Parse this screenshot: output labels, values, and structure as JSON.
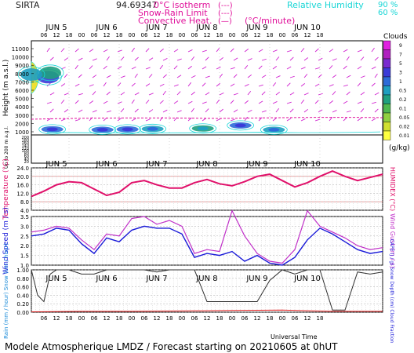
{
  "header": {
    "station": "SIRTA",
    "coords": "94.69347",
    "legend_lines": [
      {
        "label": "0°C isotherm",
        "sym": "(---)",
        "color": "#e0109a"
      },
      {
        "label": "Snow-Rain Limit",
        "sym": "(---)",
        "color": "#e0109a"
      },
      {
        "label": "Convective Heat.",
        "sym": "(—)",
        "color": "#e0109a"
      }
    ],
    "convective_unit": "(°C/minute)",
    "rh_label": "Relative Humidity",
    "rh_levels": [
      "90 %",
      "60 %"
    ],
    "rh_color": "#19d6d6"
  },
  "footer": {
    "title": "Modele Atmospherique LMDZ / Forecast starting on 20210605 at 0hUT",
    "universal_time": "Universal Time"
  },
  "time_axis": {
    "hour_ticks": [
      "06",
      "12",
      "18",
      "00",
      "06",
      "12",
      "18",
      "00",
      "06",
      "12",
      "18",
      "00",
      "06",
      "12",
      "18",
      "00",
      "06",
      "12",
      "18",
      "00",
      "06",
      "12",
      "18"
    ],
    "days": [
      "JUN 5",
      "JUN 6",
      "JUN 7",
      "JUN 8",
      "JUN 9",
      "JUN 10"
    ]
  },
  "chart_data": [
    {
      "type": "heatmap",
      "name": "clouds",
      "ylabel": "Height (m a.s.l.)",
      "ylabel_lower": "Up to 200 m a.g.l.",
      "yticks_upper": [
        "11000",
        "10000",
        "9000",
        "8000",
        "7000",
        "6000",
        "5000",
        "4000",
        "3000",
        "2000",
        "1000"
      ],
      "yticks_lower": [
        "200",
        "180",
        "160",
        "140",
        "120",
        "100",
        "80",
        "60",
        "40",
        "20"
      ],
      "colorbar": {
        "title": "Clouds",
        "unit": "(g/kg)",
        "levels": [
          "9",
          "7",
          "5",
          "3",
          "1",
          "0.5",
          "0.2",
          "0.1",
          "0.05",
          "0.02",
          "0.01"
        ],
        "colors": [
          "#e020e0",
          "#b020c0",
          "#7a2bd0",
          "#3b3bd8",
          "#2d6bd8",
          "#1f9fc0",
          "#20a080",
          "#50b850",
          "#90d040",
          "#d0e030",
          "#ffff40"
        ]
      },
      "cloud_blobs": [
        {
          "t": 8,
          "z": 7700,
          "value": 3
        },
        {
          "t": 9,
          "z": 8200,
          "value": 0.2
        },
        {
          "t": 0,
          "z": 8000,
          "value": 0.5
        },
        {
          "t": 10,
          "z": 1650,
          "value": 1
        },
        {
          "t": 34,
          "z": 1600,
          "value": 1
        },
        {
          "t": 46,
          "z": 1650,
          "value": 1
        },
        {
          "t": 58,
          "z": 1700,
          "value": 0.5
        },
        {
          "t": 82,
          "z": 1750,
          "value": 0.2
        },
        {
          "t": 100,
          "z": 2100,
          "value": 1
        },
        {
          "t": 116,
          "z": 1600,
          "value": 0.5
        }
      ]
    },
    {
      "type": "line",
      "name": "temperature",
      "ylabel": "Temperature (°C)",
      "ylabel_right": "HUMIDEX (°C)",
      "yticks": [
        "24.0",
        "20.0",
        "16.0",
        "12.0",
        "8.0",
        "4.0"
      ],
      "ylim": [
        4,
        24
      ],
      "series": [
        {
          "color": "#e0106a",
          "x": [
            0,
            6,
            12,
            18,
            24,
            30,
            36,
            42,
            48,
            54,
            60,
            66,
            72,
            78,
            84,
            90,
            96,
            102,
            108,
            114,
            120,
            126,
            132,
            138,
            144,
            150,
            156,
            162,
            168
          ],
          "values": [
            10.5,
            13,
            16,
            17.5,
            17,
            14,
            11,
            12.5,
            17,
            18,
            16,
            14.5,
            14.5,
            17,
            18.5,
            16.5,
            15.5,
            17.5,
            20,
            21,
            18,
            15,
            17,
            20,
            22.5,
            20,
            18,
            19.5,
            21
          ]
        }
      ]
    },
    {
      "type": "line",
      "name": "wind",
      "ylabel": "Wind Speed (m / s)",
      "ylabel_right": "Wind Gust (m / s)",
      "yticks": [
        "3.5",
        "3.0",
        "2.5",
        "2.0",
        "1.5",
        "1.0"
      ],
      "ylim": [
        1,
        3.5
      ],
      "series": [
        {
          "color": "#1a1ad8",
          "x": [
            0,
            6,
            12,
            18,
            24,
            30,
            36,
            42,
            48,
            54,
            60,
            66,
            72,
            78,
            84,
            90,
            96,
            102,
            108,
            114,
            120,
            126,
            132,
            138,
            144,
            150,
            156,
            162,
            168
          ],
          "values": [
            2.5,
            2.6,
            2.9,
            2.8,
            2.1,
            1.6,
            2.4,
            2.2,
            2.8,
            3.0,
            2.9,
            2.9,
            2.6,
            1.4,
            1.6,
            1.5,
            1.7,
            1.2,
            1.5,
            1.1,
            1.0,
            1.4,
            2.3,
            2.9,
            2.6,
            2.2,
            1.8,
            1.6,
            1.7
          ]
        },
        {
          "color": "#c030c8",
          "x": [
            0,
            6,
            12,
            18,
            24,
            30,
            36,
            42,
            48,
            54,
            60,
            66,
            72,
            78,
            84,
            90,
            96,
            102,
            108,
            114,
            120,
            126,
            132,
            138,
            144,
            150,
            156,
            162,
            168
          ],
          "values": [
            2.7,
            2.8,
            3.0,
            2.9,
            2.3,
            1.8,
            2.6,
            2.5,
            3.4,
            3.5,
            3.1,
            3.3,
            3.0,
            1.6,
            1.8,
            1.7,
            3.8,
            2.5,
            1.6,
            1.2,
            1.1,
            1.8,
            3.8,
            3.0,
            2.7,
            2.4,
            2.0,
            1.8,
            1.9
          ]
        }
      ]
    },
    {
      "type": "line",
      "name": "rain",
      "ylabel": "Rain (mm / hour) Snow (cm / hour)",
      "ylabel_right": "CAPE (J / g) Snow Depth (cm) Cloud Fraction",
      "yticks": [
        "1.00",
        "0.80",
        "0.60",
        "0.40",
        "0.20",
        "0.00"
      ],
      "ylim": [
        0,
        1
      ],
      "series": [
        {
          "color": "#303030",
          "x": [
            0,
            3,
            6,
            9,
            12,
            15,
            18,
            24,
            30,
            36,
            42,
            48,
            54,
            60,
            66,
            72,
            78,
            84,
            90,
            96,
            102,
            108,
            114,
            120,
            126,
            132,
            138,
            144,
            150,
            156,
            162,
            168
          ],
          "values": [
            1.0,
            0.4,
            0.25,
            0.9,
            1.0,
            1.0,
            1.0,
            0.9,
            0.9,
            1.0,
            1.0,
            1.0,
            1.0,
            0.95,
            1.0,
            1.0,
            1.0,
            0.25,
            0.25,
            0.25,
            0.25,
            0.25,
            0.75,
            1.0,
            0.9,
            1.0,
            1.0,
            0.05,
            0.05,
            0.95,
            0.9,
            0.95
          ]
        },
        {
          "color": "#e02020",
          "x": [
            0,
            24,
            48,
            72,
            96,
            120,
            144,
            168
          ],
          "values": [
            0.01,
            0.02,
            0.02,
            0.03,
            0.04,
            0.05,
            0.02,
            0.02
          ]
        }
      ]
    }
  ]
}
